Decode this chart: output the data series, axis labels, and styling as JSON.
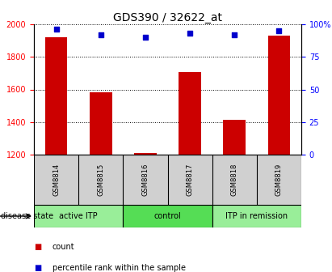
{
  "title": "GDS390 / 32622_at",
  "samples": [
    "GSM8814",
    "GSM8815",
    "GSM8816",
    "GSM8817",
    "GSM8818",
    "GSM8819"
  ],
  "counts": [
    1920,
    1585,
    1210,
    1705,
    1415,
    1930
  ],
  "percentile_ranks": [
    96,
    92,
    90,
    93,
    92,
    95
  ],
  "ylim_left": [
    1200,
    2000
  ],
  "ylim_right": [
    0,
    100
  ],
  "yticks_left": [
    1200,
    1400,
    1600,
    1800,
    2000
  ],
  "yticks_right": [
    0,
    25,
    50,
    75,
    100
  ],
  "ytick_labels_right": [
    "0",
    "25",
    "50",
    "75",
    "100%"
  ],
  "bar_color": "#cc0000",
  "dot_color": "#0000cc",
  "bar_bottom": 1200,
  "groups": [
    {
      "label": "active ITP",
      "start": 0,
      "end": 2,
      "color": "#99ee99"
    },
    {
      "label": "control",
      "start": 2,
      "end": 4,
      "color": "#55dd55"
    },
    {
      "label": "ITP in remission",
      "start": 4,
      "end": 6,
      "color": "#99ee99"
    }
  ],
  "disease_state_label": "disease state",
  "legend_count_label": "count",
  "legend_pct_label": "percentile rank within the sample",
  "background_color": "#ffffff",
  "sample_bg_color": "#d0d0d0",
  "title_fontsize": 10,
  "tick_fontsize": 7,
  "sample_fontsize": 6,
  "group_fontsize": 7,
  "legend_fontsize": 7,
  "ds_label_fontsize": 7
}
